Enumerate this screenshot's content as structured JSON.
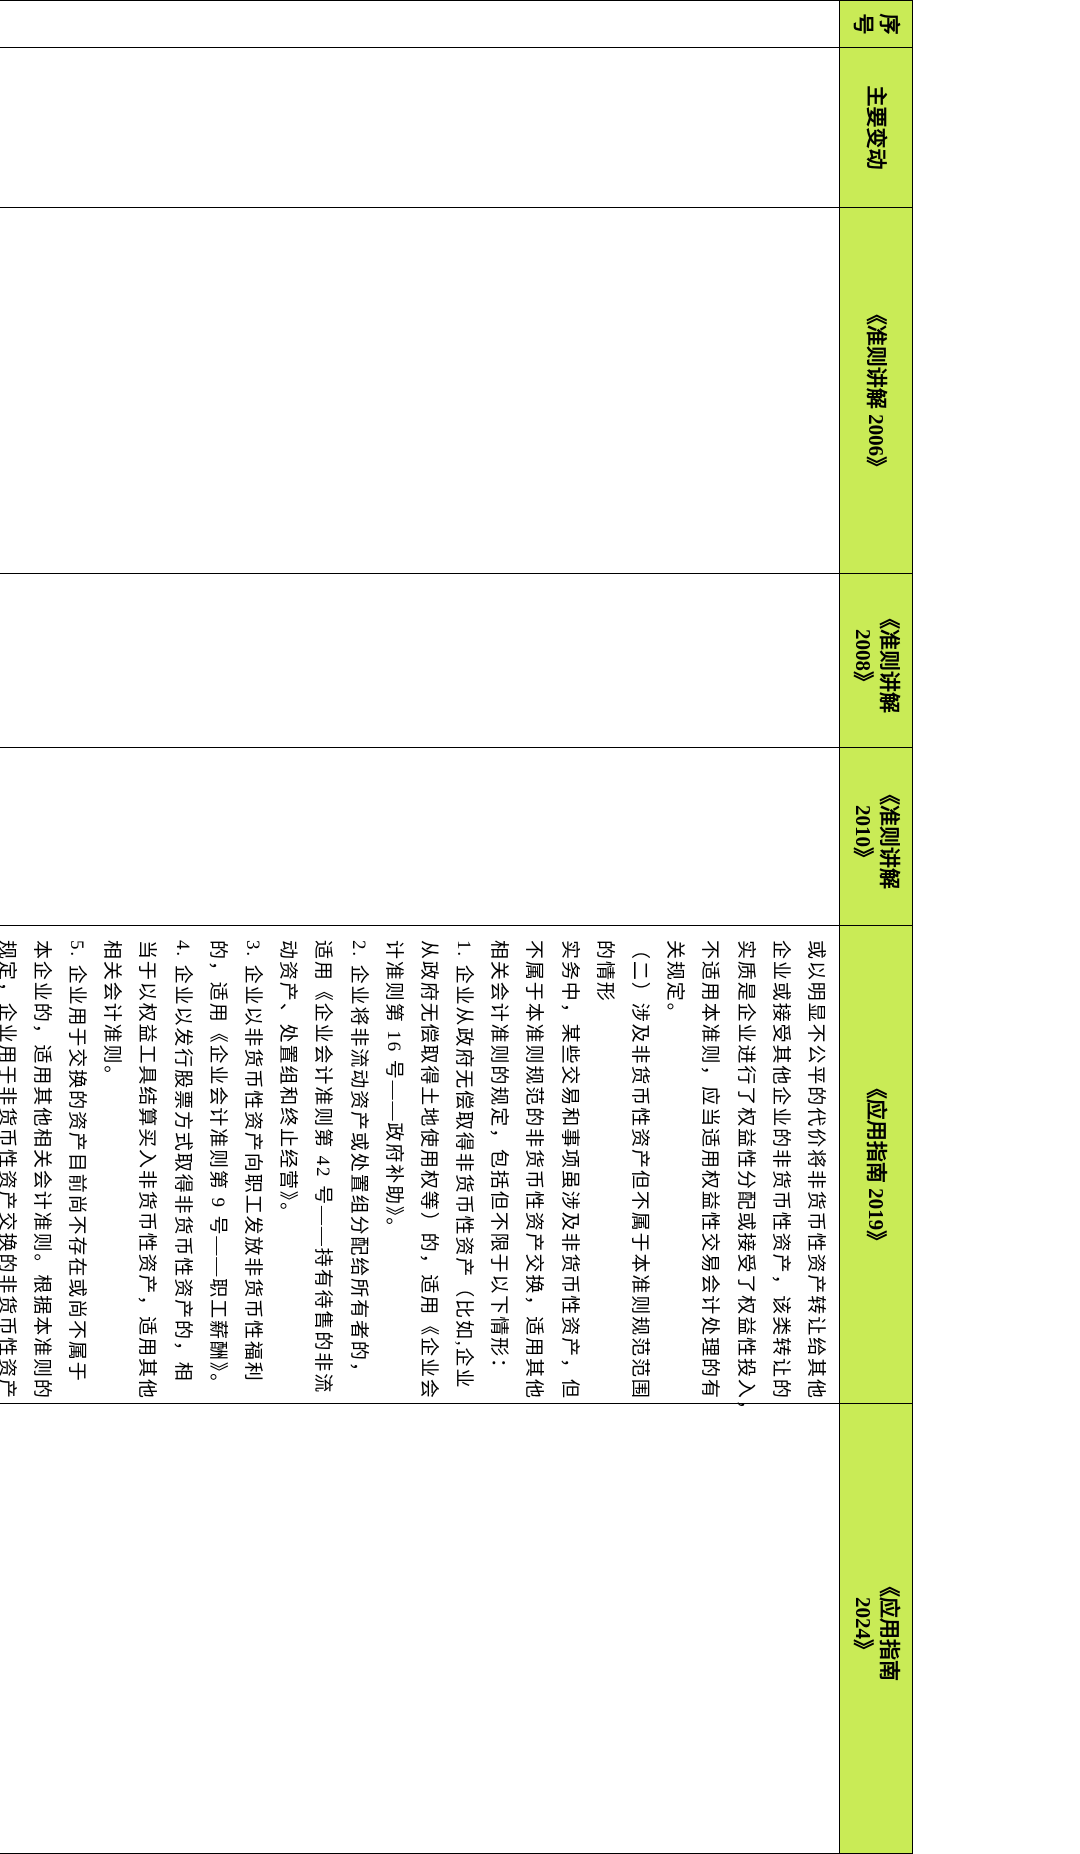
{
  "table": {
    "header_color": "#c9eb56",
    "headers": [
      "序号",
      "主要变动",
      "《准则讲解 2006》",
      "《准则讲解 2008》",
      "《准则讲解 2010》",
      "《应用指南 2019》",
      "《应用指南 2024》"
    ],
    "header_lines": {
      "seq": [
        "序",
        "号"
      ],
      "h2008": [
        "《准则讲解",
        "2008》"
      ],
      "h2010": [
        "《准则讲解",
        "2010》"
      ],
      "h2024": [
        "《应用指南",
        "2024》"
      ]
    },
    "row": {
      "guide_2019_lines": [
        "或以明显不公平的代价将非货币性资产转让给其他",
        "企业或接受其他企业的非货币性资产，该类转让的",
        "实质是企业进行了权益性分配或接受了权益性投入，",
        "不适用本准则，应当适用权益性交易会计处理的有",
        "关规定。",
        "（二）涉及非货币性资产但不属于本准则规范范围",
        "的情形",
        "实务中，某些交易和事项虽涉及非货币性资产，但",
        "不属于本准则规范的非货币性资产交换，适用其他",
        "相关会计准则的规定，包括但不限于以下情形：",
        "1. 企业从政府无偿取得非货币性资产（比如,企业",
        "从政府无偿取得土地使用权等）的，适用《企业会",
        "计准则第 16 号——政府补助》。",
        "2. 企业将非流动资产或处置组分配给所有者的，",
        "适用《企业会计准则第 42 号——持有待售的非流",
        "动资产、处置组和终止经营》。",
        "3. 企业以非货币性资产向职工发放非货币性福利",
        "的，适用《企业会计准则第 9 号——职工薪酬》。",
        "4. 企业以发行股票方式取得非货币性资产的，相",
        "当于以权益工具结算买入非货币性资产，适用其他",
        "相关会计准则。",
        "5. 企业用于交换的资产目前尚不存在或尚不属于",
        "本企业的，适用其他相关会计准则。根据本准则的",
        "规定，企业用于非货币性资产交换的非货币性资产"
      ]
    }
  }
}
